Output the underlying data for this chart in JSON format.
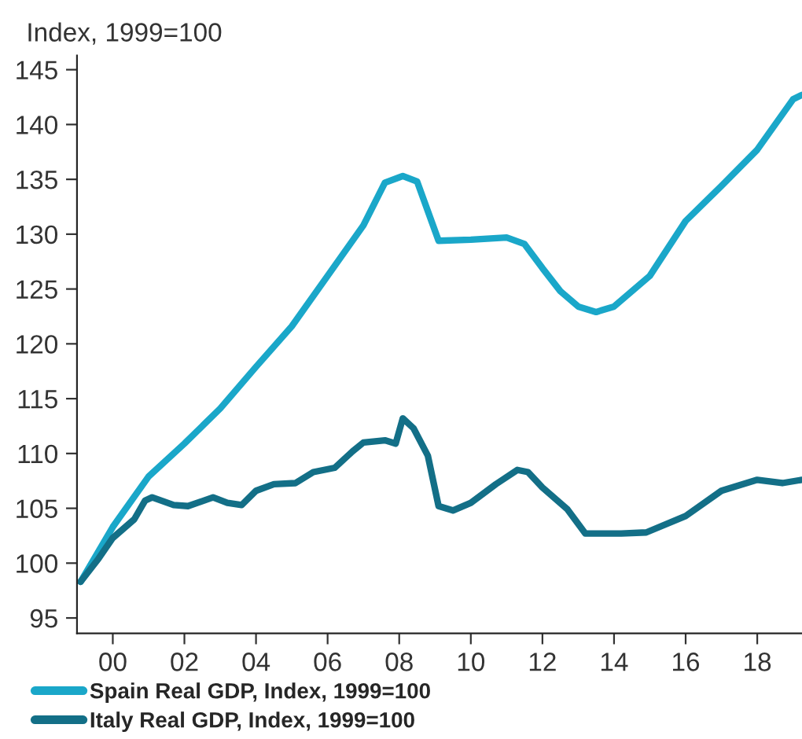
{
  "chart_data": {
    "type": "line",
    "ylabel": "Index, 1999=100",
    "xlim": [
      1999.0,
      2019.25
    ],
    "ylim": [
      93.6,
      146.3
    ],
    "xticks": [
      {
        "value": 2000,
        "label": "00"
      },
      {
        "value": 2002,
        "label": "02"
      },
      {
        "value": 2004,
        "label": "04"
      },
      {
        "value": 2006,
        "label": "06"
      },
      {
        "value": 2008,
        "label": "08"
      },
      {
        "value": 2010,
        "label": "10"
      },
      {
        "value": 2012,
        "label": "12"
      },
      {
        "value": 2014,
        "label": "14"
      },
      {
        "value": 2016,
        "label": "16"
      },
      {
        "value": 2018,
        "label": "18"
      }
    ],
    "yticks": [
      95,
      100,
      105,
      110,
      115,
      120,
      125,
      130,
      135,
      140,
      145
    ],
    "grid": false,
    "legend": "bottom",
    "line_style": "solid",
    "marker": "none",
    "series": [
      {
        "name": "Spain Real GDP, Index, 1999=100",
        "color": "#1aa7c9",
        "x": [
          1999.1,
          2000,
          2001,
          2002,
          2003,
          2004,
          2005,
          2006,
          2007,
          2007.6,
          2008.1,
          2008.5,
          2009.1,
          2010,
          2011,
          2011.5,
          2012,
          2012.5,
          2013,
          2013.5,
          2014,
          2014.5,
          2015,
          2016,
          2017,
          2018,
          2019,
          2019.25
        ],
        "values": [
          98.3,
          103.3,
          107.9,
          110.9,
          114.1,
          117.9,
          121.6,
          126.2,
          130.8,
          134.7,
          135.3,
          134.8,
          129.4,
          129.5,
          129.7,
          129.1,
          126.9,
          124.8,
          123.4,
          122.9,
          123.4,
          124.8,
          126.2,
          131.2,
          134.4,
          137.7,
          142.3,
          142.7
        ]
      },
      {
        "name": "Italy Real GDP, Index, 1999=100",
        "color": "#136f87",
        "x": [
          1999.1,
          1999.6,
          2000,
          2000.6,
          2000.9,
          2001.1,
          2001.7,
          2002.1,
          2002.8,
          2003.2,
          2003.6,
          2004,
          2004.5,
          2005.1,
          2005.6,
          2006.2,
          2006.7,
          2007,
          2007.6,
          2007.9,
          2008.1,
          2008.4,
          2008.8,
          2009.1,
          2009.5,
          2010,
          2010.7,
          2011.3,
          2011.6,
          2012,
          2012.7,
          2013.2,
          2014.2,
          2014.9,
          2016,
          2017,
          2018,
          2018.7,
          2019.25
        ],
        "values": [
          98.3,
          100.4,
          102.3,
          104.0,
          105.7,
          106.0,
          105.3,
          105.2,
          106.0,
          105.5,
          105.3,
          106.6,
          107.2,
          107.3,
          108.3,
          108.7,
          110.2,
          111.0,
          111.2,
          110.9,
          113.2,
          112.3,
          109.8,
          105.2,
          104.8,
          105.5,
          107.2,
          108.5,
          108.3,
          106.9,
          104.9,
          102.7,
          102.7,
          102.8,
          104.3,
          106.6,
          107.6,
          107.3,
          107.6
        ]
      }
    ]
  }
}
